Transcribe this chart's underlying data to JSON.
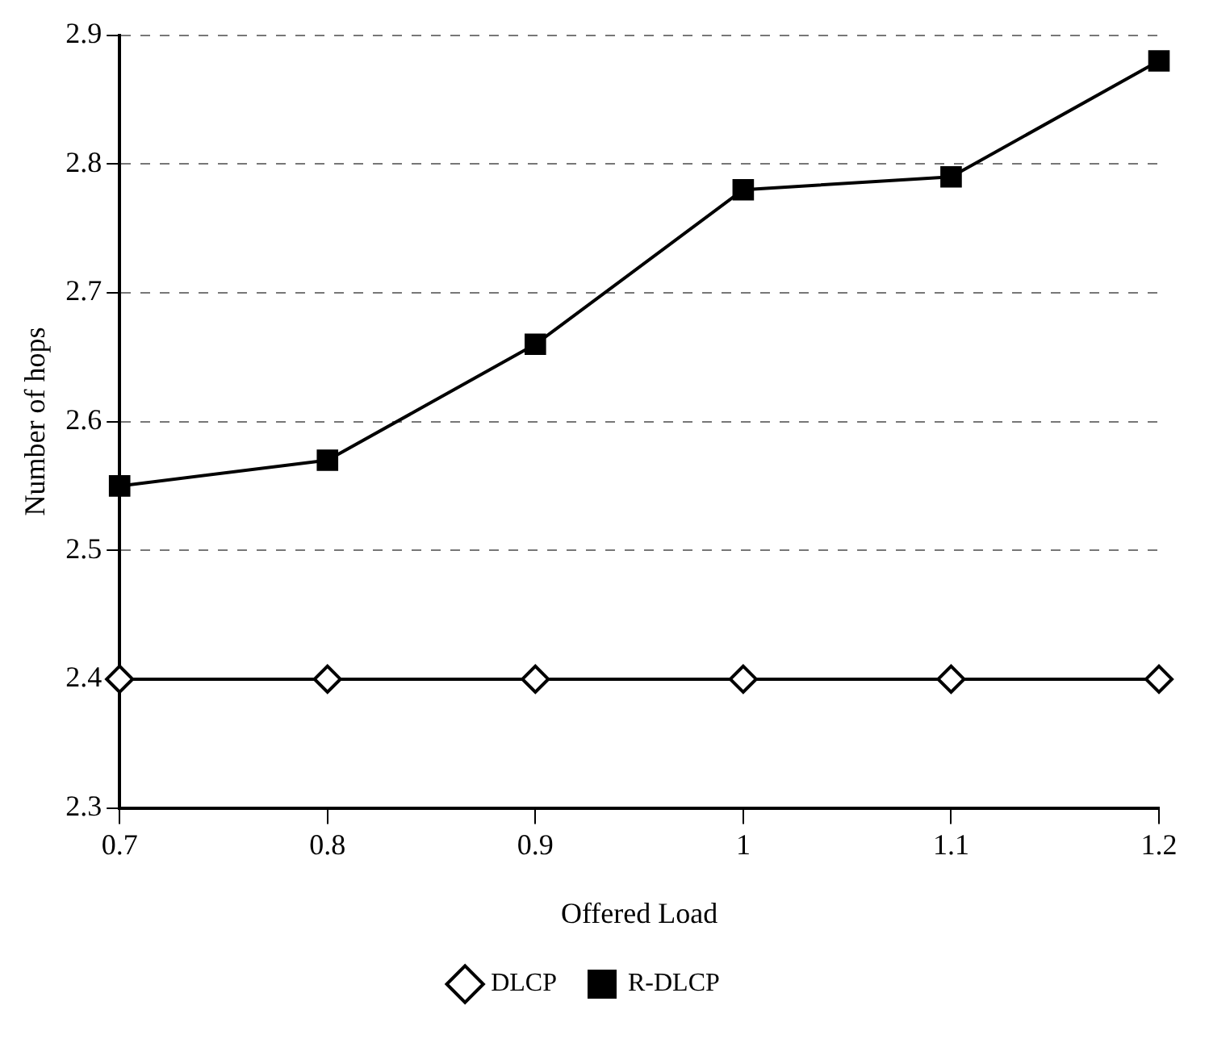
{
  "chart_data": {
    "type": "line",
    "xlabel": "Offered Load",
    "ylabel": "Number of hops",
    "x": [
      0.7,
      0.8,
      0.9,
      1,
      1.1,
      1.2
    ],
    "xlim": [
      0.7,
      1.2
    ],
    "xticks": [
      0.7,
      0.8,
      0.9,
      {
        "value": 1,
        "label": "1"
      },
      1.1,
      1.2
    ],
    "ylim": [
      2.3,
      2.9
    ],
    "yticks": [
      2.3,
      2.4,
      2.5,
      2.6,
      2.7,
      2.8,
      2.9
    ],
    "grid": "y",
    "legend": "bottom",
    "line_style": "solid",
    "series": [
      {
        "name": "DLCP",
        "color": "#000000",
        "marker": "diamond",
        "values": [
          2.4,
          2.4,
          2.4,
          2.4,
          2.4,
          2.4
        ]
      },
      {
        "name": "R-DLCP",
        "color": "#000000",
        "marker": "square",
        "values": [
          2.55,
          2.57,
          2.66,
          2.78,
          2.79,
          2.88
        ]
      }
    ]
  }
}
